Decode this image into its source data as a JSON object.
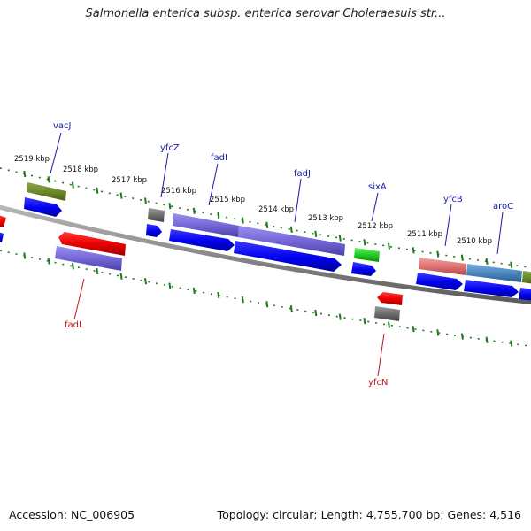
{
  "title": "Salmonella enterica subsp. enterica serovar Choleraesuis str...",
  "footer": {
    "accession": "Accession: NC_006905",
    "topology": "Topology: circular; Length: 4,755,700 bp; Genes: 4,516"
  },
  "colors": {
    "label_upper": "#1a1aa6",
    "label_lower": "#c0151d",
    "tick": "#1d7a1d",
    "backbone": "#888888"
  },
  "kbp_labels": [
    "2519 kbp",
    "2518 kbp",
    "2517 kbp",
    "2516 kbp",
    "2515 kbp",
    "2514 kbp",
    "2513 kbp",
    "2512 kbp",
    "2511 kbp",
    "2510 kbp"
  ],
  "gene_labels": {
    "vacJ": "vacJ",
    "yfcZ": "yfcZ",
    "fadI": "fadI",
    "fadJ": "fadJ",
    "sixA": "sixA",
    "yfcB": "yfcB",
    "aroC": "aroC",
    "fadL": "fadL",
    "yfcN": "yfcN"
  }
}
